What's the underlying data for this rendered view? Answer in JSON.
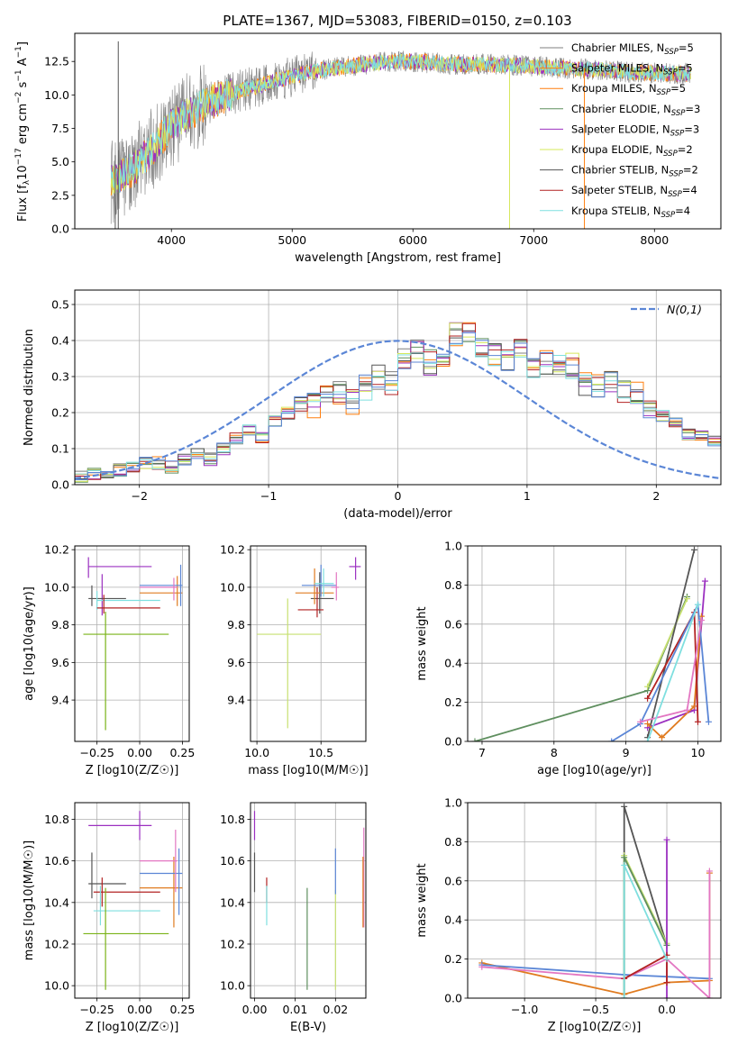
{
  "figure": {
    "title": "PLATE=1367, MJD=53083, FIBERID=0150, z=0.103"
  },
  "colors": {
    "Chabrier MILES": "#7f7f7f",
    "Salpeter MILES": "#ff7f0e",
    "Kroupa MILES": "#ff7f0e",
    "Chabrier ELODIE": "#5f8f5f",
    "Salpeter ELODIE": "#9b30c0",
    "Kroupa ELODIE": "#d6e85a",
    "Chabrier STELIB": "#555555",
    "Salpeter STELIB": "#b22222",
    "Kroupa STELIB": "#7fdfdf",
    "fit_blue": "#5b86d6",
    "fit_pink": "#e377c2",
    "fit_green": "#7ab317",
    "fit_orange": "#e07b20",
    "fit_olive": "#c7e070",
    "normal_curve": "#5b86d6"
  },
  "chart_data": [
    {
      "id": "spectrum",
      "type": "line",
      "title": "PLATE=1367, MJD=53083, FIBERID=0150, z=0.103",
      "xlabel": "wavelength [Angstrom, rest frame]",
      "ylabel": "Flux [f_λ10^-17 erg cm^-2 s^-1 A^-1]",
      "xlim": [
        3200,
        8550
      ],
      "ylim": [
        0,
        14.6
      ],
      "xticks": [
        4000,
        5000,
        6000,
        7000,
        8000
      ],
      "yticks": [
        0.0,
        2.5,
        5.0,
        7.5,
        10.0,
        12.5
      ],
      "grid": false,
      "legend_position": "right",
      "legend": [
        {
          "label": "Chabrier MILES, N_SSP=5",
          "color": "#7f7f7f"
        },
        {
          "label": "Salpeter MILES, N_SSP=5",
          "color": "#ff7f0e"
        },
        {
          "label": "Kroupa MILES, N_SSP=5",
          "color": "#ff7f0e"
        },
        {
          "label": "Chabrier ELODIE, N_SSP=3",
          "color": "#5f8f5f"
        },
        {
          "label": "Salpeter ELODIE, N_SSP=3",
          "color": "#9b30c0"
        },
        {
          "label": "Kroupa ELODIE, N_SSP=2",
          "color": "#d6e85a"
        },
        {
          "label": "Chabrier STELIB, N_SSP=2",
          "color": "#555555"
        },
        {
          "label": "Salpeter STELIB, N_SSP=4",
          "color": "#b22222"
        },
        {
          "label": "Kroupa STELIB, N_SSP=4",
          "color": "#7fdfdf"
        }
      ],
      "data_range": [
        3500,
        8300
      ],
      "continuum": {
        "x": [
          3500,
          3700,
          3900,
          4000,
          4200,
          4500,
          4800,
          5000,
          5200,
          5500,
          5800,
          6000,
          6300,
          6600,
          6900,
          7200,
          7500,
          7800,
          8100,
          8300
        ],
        "y": [
          3.5,
          4.6,
          6.6,
          7.8,
          9.0,
          10.1,
          10.9,
          11.4,
          11.8,
          12.2,
          12.5,
          12.5,
          12.3,
          12.3,
          12.2,
          12.0,
          11.9,
          11.7,
          11.6,
          11.6
        ]
      },
      "spikes": [
        {
          "x": 3535,
          "y0": 0,
          "y1": 5.5
        },
        {
          "x": 3560,
          "y0": 0,
          "y1": 14.0
        },
        {
          "x": 6800,
          "y0": 0,
          "y1": 12.0
        },
        {
          "x": 7420,
          "y0": 0,
          "y1": 12.0
        }
      ]
    },
    {
      "id": "residuals",
      "type": "line",
      "xlabel": "(data-model)/error",
      "ylabel": "Normed distribution",
      "xlim": [
        -2.5,
        2.5
      ],
      "ylim": [
        0,
        0.54
      ],
      "xticks": [
        -2,
        -1,
        0,
        1,
        2
      ],
      "yticks": [
        0.0,
        0.1,
        0.2,
        0.3,
        0.4,
        0.5
      ],
      "grid": true,
      "legend_position": "top-right",
      "legend": [
        {
          "label": "N(0,1)",
          "color": "#5b86d6",
          "style": "dashed"
        }
      ],
      "bin_width": 0.1,
      "bin_start": -2.5,
      "base_hist": [
        0.02,
        0.03,
        0.03,
        0.04,
        0.05,
        0.06,
        0.06,
        0.05,
        0.07,
        0.09,
        0.07,
        0.1,
        0.13,
        0.15,
        0.13,
        0.18,
        0.2,
        0.22,
        0.22,
        0.25,
        0.25,
        0.23,
        0.27,
        0.3,
        0.28,
        0.35,
        0.37,
        0.34,
        0.33,
        0.42,
        0.42,
        0.37,
        0.36,
        0.34,
        0.37,
        0.33,
        0.34,
        0.34,
        0.33,
        0.28,
        0.27,
        0.28,
        0.26,
        0.25,
        0.22,
        0.19,
        0.17,
        0.14,
        0.14,
        0.12,
        0.1,
        0.09,
        0.09,
        0.08,
        0.07,
        0.06,
        0.05,
        0.05,
        0.05,
        0.04,
        0.04
      ],
      "series_colors": [
        "#7f7f7f",
        "#ff7f0e",
        "#5f8f5f",
        "#9b30c0",
        "#d6e85a",
        "#555555",
        "#b22222",
        "#7fdfdf",
        "#5b86d6"
      ]
    },
    {
      "id": "age_vs_Z",
      "type": "scatter",
      "xlabel": "Z [log10(Z/Z☉)]",
      "ylabel": "age  [log10(age/yr)]",
      "xlim": [
        -0.38,
        0.29
      ],
      "ylim": [
        9.18,
        10.22
      ],
      "xticks": [
        -0.25,
        0.0,
        0.25
      ],
      "xtick_labels": [
        "−0.25",
        "0.00",
        "0.25"
      ],
      "yticks": [
        9.4,
        9.6,
        9.8,
        10.0,
        10.2
      ],
      "grid": true,
      "errorbars": [
        {
          "x": -0.3,
          "y": 10.11,
          "x0": -0.3,
          "x1": 0.07,
          "y0": 10.05,
          "y1": 10.16,
          "color": "#9b30c0"
        },
        {
          "x": -0.22,
          "y": 10.11,
          "x0": -0.22,
          "x1": -0.22,
          "y0": 9.85,
          "y1": 10.07,
          "color": "#9b30c0"
        },
        {
          "x": -0.28,
          "y": 9.94,
          "x0": -0.3,
          "x1": -0.08,
          "y0": 9.9,
          "y1": 10.01,
          "color": "#555555"
        },
        {
          "x": -0.25,
          "y": 9.93,
          "x0": -0.25,
          "x1": 0.12,
          "y0": 9.88,
          "y1": 9.98,
          "color": "#7fdfdf"
        },
        {
          "x": -0.21,
          "y": 9.89,
          "x0": -0.25,
          "x1": 0.12,
          "y0": 9.86,
          "y1": 9.96,
          "color": "#b22222"
        },
        {
          "x": -0.2,
          "y": 9.75,
          "x0": -0.33,
          "x1": 0.17,
          "y0": 9.24,
          "y1": 9.87,
          "color": "#7ab317"
        },
        {
          "x": 0.22,
          "y": 9.97,
          "x0": 0.0,
          "x1": 0.25,
          "y0": 9.9,
          "y1": 10.06,
          "color": "#e07b20"
        },
        {
          "x": 0.24,
          "y": 10.01,
          "x0": 0.0,
          "x1": 0.25,
          "y0": 9.9,
          "y1": 10.12,
          "color": "#5b86d6"
        },
        {
          "x": 0.2,
          "y": 10.0,
          "x0": 0.0,
          "x1": 0.22,
          "y0": 9.93,
          "y1": 10.05,
          "color": "#e377c2"
        }
      ]
    },
    {
      "id": "age_vs_mass",
      "type": "scatter",
      "xlabel": "mass [log10(M/M☉)]",
      "ylabel": "",
      "xlim": [
        9.95,
        10.85
      ],
      "ylim": [
        9.18,
        10.22
      ],
      "xticks": [
        10.0,
        10.5
      ],
      "xtick_labels": [
        "10.0",
        "10.5"
      ],
      "yticks": [
        9.4,
        9.6,
        9.8,
        10.0,
        10.2
      ],
      "grid": true,
      "errorbars": [
        {
          "x": 10.77,
          "y": 10.11,
          "x0": 10.72,
          "x1": 10.81,
          "y0": 10.04,
          "y1": 10.16,
          "color": "#9b30c0"
        },
        {
          "x": 10.49,
          "y": 9.94,
          "x0": 10.42,
          "x1": 10.6,
          "y0": 9.86,
          "y1": 10.08,
          "color": "#555555"
        },
        {
          "x": 10.47,
          "y": 9.88,
          "x0": 10.32,
          "x1": 10.52,
          "y0": 9.84,
          "y1": 10.0,
          "color": "#b22222"
        },
        {
          "x": 10.45,
          "y": 9.97,
          "x0": 10.3,
          "x1": 10.6,
          "y0": 9.91,
          "y1": 10.1,
          "color": "#e07b20"
        },
        {
          "x": 10.5,
          "y": 10.01,
          "x0": 10.35,
          "x1": 10.62,
          "y0": 9.95,
          "y1": 10.12,
          "color": "#5b86d6"
        },
        {
          "x": 10.52,
          "y": 10.02,
          "x0": 10.45,
          "x1": 10.6,
          "y0": 9.95,
          "y1": 10.1,
          "color": "#7fdfdf"
        },
        {
          "x": 10.62,
          "y": 10.0,
          "x0": 10.58,
          "x1": 10.64,
          "y0": 9.93,
          "y1": 10.08,
          "color": "#e377c2"
        },
        {
          "x": 10.24,
          "y": 9.75,
          "x0": 10.0,
          "x1": 10.5,
          "y0": 9.25,
          "y1": 9.94,
          "color": "#c7e070"
        }
      ]
    },
    {
      "id": "massweight_vs_age",
      "type": "line",
      "xlabel": "age  [log10(age/yr)]",
      "ylabel": "mass weight",
      "xlim": [
        6.8,
        10.32
      ],
      "ylim": [
        0,
        1.0
      ],
      "xticks": [
        7,
        8,
        9,
        10
      ],
      "yticks": [
        0.0,
        0.2,
        0.4,
        0.6,
        0.8,
        1.0
      ],
      "grid": true,
      "series": [
        {
          "name": "",
          "color": "#5f8f5f",
          "x": [
            6.9,
            9.3,
            9.85
          ],
          "y": [
            0.0,
            0.26,
            0.74
          ]
        },
        {
          "name": "",
          "color": "#c7e070",
          "x": [
            9.3,
            9.85
          ],
          "y": [
            0.28,
            0.73
          ]
        },
        {
          "name": "",
          "color": "#555555",
          "x": [
            9.3,
            9.95
          ],
          "y": [
            0.02,
            0.98
          ]
        },
        {
          "name": "",
          "color": "#9b30c0",
          "x": [
            9.3,
            9.95,
            10.1
          ],
          "y": [
            0.07,
            0.16,
            0.82
          ]
        },
        {
          "name": "",
          "color": "#e07b20",
          "x": [
            9.3,
            9.5,
            9.95,
            10.05
          ],
          "y": [
            0.09,
            0.02,
            0.18,
            0.64
          ]
        },
        {
          "name": "",
          "color": "#b22222",
          "x": [
            9.3,
            9.95,
            10.0
          ],
          "y": [
            0.22,
            0.66,
            0.1
          ]
        },
        {
          "name": "",
          "color": "#5b86d6",
          "x": [
            8.8,
            9.2,
            10.0,
            10.15
          ],
          "y": [
            0.0,
            0.09,
            0.7,
            0.1
          ]
        },
        {
          "name": "",
          "color": "#e377c2",
          "x": [
            9.2,
            9.85,
            10.05
          ],
          "y": [
            0.1,
            0.16,
            0.62
          ]
        },
        {
          "name": "",
          "color": "#7fdfdf",
          "x": [
            9.3,
            10.0
          ],
          "y": [
            0.0,
            0.7
          ]
        }
      ]
    },
    {
      "id": "mass_vs_Z",
      "type": "scatter",
      "xlabel": "Z [log10(Z/Z☉)]",
      "ylabel": "mass [log10(M/M☉)]",
      "xlim": [
        -0.38,
        0.29
      ],
      "ylim": [
        9.94,
        10.88
      ],
      "xticks": [
        -0.25,
        0.0,
        0.25
      ],
      "xtick_labels": [
        "−0.25",
        "0.00",
        "0.25"
      ],
      "yticks": [
        10.0,
        10.2,
        10.4,
        10.6,
        10.8
      ],
      "grid": true,
      "errorbars": [
        {
          "x": 0.0,
          "y": 10.77,
          "x0": -0.3,
          "x1": 0.07,
          "y0": 10.7,
          "y1": 10.84,
          "color": "#9b30c0"
        },
        {
          "x": -0.28,
          "y": 10.49,
          "x0": -0.3,
          "x1": -0.08,
          "y0": 10.42,
          "y1": 10.64,
          "color": "#555555"
        },
        {
          "x": -0.22,
          "y": 10.45,
          "x0": -0.27,
          "x1": 0.12,
          "y0": 10.38,
          "y1": 10.52,
          "color": "#b22222"
        },
        {
          "x": -0.23,
          "y": 10.36,
          "x0": -0.27,
          "x1": 0.12,
          "y0": 10.29,
          "y1": 10.48,
          "color": "#7fdfdf"
        },
        {
          "x": -0.2,
          "y": 10.25,
          "x0": -0.33,
          "x1": 0.17,
          "y0": 9.98,
          "y1": 10.47,
          "color": "#7ab317"
        },
        {
          "x": 0.2,
          "y": 10.47,
          "x0": 0.0,
          "x1": 0.25,
          "y0": 10.28,
          "y1": 10.62,
          "color": "#e07b20"
        },
        {
          "x": 0.23,
          "y": 10.54,
          "x0": 0.0,
          "x1": 0.25,
          "y0": 10.34,
          "y1": 10.66,
          "color": "#5b86d6"
        },
        {
          "x": 0.21,
          "y": 10.6,
          "x0": 0.0,
          "x1": 0.22,
          "y0": 10.45,
          "y1": 10.75,
          "color": "#e377c2"
        }
      ]
    },
    {
      "id": "mass_vs_ebv",
      "type": "scatter",
      "xlabel": "E(B-V)",
      "ylabel": "",
      "xlim": [
        -0.001,
        0.0275
      ],
      "ylim": [
        9.94,
        10.88
      ],
      "xticks": [
        0.0,
        0.01,
        0.02
      ],
      "xtick_labels": [
        "0.00",
        "0.01",
        "0.02"
      ],
      "yticks": [
        10.0,
        10.2,
        10.4,
        10.6,
        10.8
      ],
      "grid": true,
      "errorbars": [
        {
          "x": 0.0,
          "y": 10.77,
          "x0": 0.0,
          "x1": 0.0,
          "y0": 10.7,
          "y1": 10.84,
          "color": "#9b30c0"
        },
        {
          "x": 0.0,
          "y": 10.49,
          "x0": 0.0,
          "x1": 0.0,
          "y0": 10.45,
          "y1": 10.64,
          "color": "#555555"
        },
        {
          "x": 0.003,
          "y": 10.45,
          "x0": 0.003,
          "x1": 0.003,
          "y0": 10.4,
          "y1": 10.52,
          "color": "#b22222"
        },
        {
          "x": 0.003,
          "y": 10.36,
          "x0": 0.003,
          "x1": 0.003,
          "y0": 10.29,
          "y1": 10.48,
          "color": "#7fdfdf"
        },
        {
          "x": 0.013,
          "y": 10.25,
          "x0": 0.013,
          "x1": 0.013,
          "y0": 9.98,
          "y1": 10.47,
          "color": "#5f8f5f"
        },
        {
          "x": 0.02,
          "y": 10.25,
          "x0": 0.02,
          "x1": 0.02,
          "y0": 9.98,
          "y1": 10.46,
          "color": "#c7e070"
        },
        {
          "x": 0.02,
          "y": 10.54,
          "x0": 0.02,
          "x1": 0.02,
          "y0": 10.44,
          "y1": 10.66,
          "color": "#5b86d6"
        },
        {
          "x": 0.027,
          "y": 10.5,
          "x0": 0.027,
          "x1": 0.027,
          "y0": 10.28,
          "y1": 10.76,
          "color": "#e377c2"
        },
        {
          "x": 0.0268,
          "y": 10.45,
          "x0": 0.0268,
          "x1": 0.0268,
          "y0": 10.28,
          "y1": 10.62,
          "color": "#e07b20"
        }
      ]
    },
    {
      "id": "massweight_vs_Z",
      "type": "line",
      "xlabel": "Z [log10(Z/Z☉)]",
      "ylabel": "mass weight",
      "xlim": [
        -1.4,
        0.38
      ],
      "ylim": [
        0,
        1.0
      ],
      "xticks": [
        -1.0,
        -0.5,
        0.0
      ],
      "xtick_labels": [
        "−1.0",
        "−0.5",
        "0.0"
      ],
      "yticks": [
        0.0,
        0.2,
        0.4,
        0.6,
        0.8,
        1.0
      ],
      "grid": true,
      "series": [
        {
          "name": "",
          "color": "#555555",
          "x": [
            -0.3,
            -0.3,
            0.0
          ],
          "y": [
            0.02,
            0.98,
            0.27
          ]
        },
        {
          "name": "",
          "color": "#c7e070",
          "x": [
            -0.3,
            -0.3,
            0.0
          ],
          "y": [
            0.02,
            0.73,
            0.28
          ]
        },
        {
          "name": "",
          "color": "#5f8f5f",
          "x": [
            -0.3,
            -0.3,
            0.0
          ],
          "y": [
            0.0,
            0.72,
            0.27
          ]
        },
        {
          "name": "",
          "color": "#9b30c0",
          "x": [
            0.0,
            0.0
          ],
          "y": [
            0.0,
            0.81
          ]
        },
        {
          "name": "",
          "color": "#e07b20",
          "x": [
            -1.3,
            -0.3,
            0.0,
            0.3,
            0.3
          ],
          "y": [
            0.18,
            0.02,
            0.08,
            0.09,
            0.64
          ]
        },
        {
          "name": "",
          "color": "#5b86d6",
          "x": [
            -1.3,
            -0.3,
            0.3
          ],
          "y": [
            0.17,
            0.12,
            0.1
          ]
        },
        {
          "name": "",
          "color": "#e377c2",
          "x": [
            -1.3,
            -0.3,
            0.0,
            0.3,
            0.3
          ],
          "y": [
            0.16,
            0.1,
            0.2,
            0.0,
            0.65
          ]
        },
        {
          "name": "",
          "color": "#b22222",
          "x": [
            -0.3,
            0.0,
            0.0
          ],
          "y": [
            0.1,
            0.22,
            0.08
          ]
        },
        {
          "name": "",
          "color": "#7fdfdf",
          "x": [
            -0.3,
            -0.3,
            0.0
          ],
          "y": [
            0.0,
            0.68,
            0.2
          ]
        }
      ]
    }
  ]
}
